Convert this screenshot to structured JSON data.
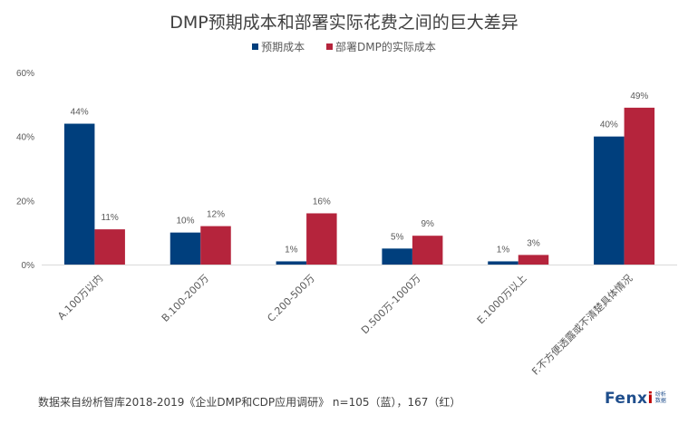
{
  "chart_data": {
    "type": "bar",
    "title": "DMP预期成本和部署实际花费之间的巨大差异",
    "categories": [
      "A.100万以内",
      "B.100-200万",
      "C.200-500万",
      "D.500万-1000万",
      "E.1000万以上",
      "F.不方便透露或不清楚具体情况"
    ],
    "series": [
      {
        "name": "预期成本",
        "color": "#003f7d",
        "values": [
          44,
          10,
          1,
          5,
          1,
          40
        ],
        "labels": [
          "44%",
          "10%",
          "1%",
          "5%",
          "1%",
          "40%"
        ]
      },
      {
        "name": "部署DMP的实际成本",
        "color": "#b5243c",
        "values": [
          11,
          12,
          16,
          9,
          3,
          49
        ],
        "labels": [
          "11%",
          "12%",
          "16%",
          "9%",
          "3%",
          "49%"
        ]
      }
    ],
    "xlabel": "",
    "ylabel": "",
    "ylim": [
      0,
      60
    ],
    "yticks": [
      0,
      20,
      40,
      60
    ],
    "ytick_labels": [
      "0%",
      "20%",
      "40%",
      "60%"
    ],
    "grid": false,
    "legend": "top-center"
  },
  "footer": {
    "source": "数据来自纷析智库2018-2019《企业DMP和CDP应用调研》  n=105（蓝），167（红）"
  },
  "logo": {
    "main": "Fenx",
    "accent": "i",
    "sub_line1": "纷析",
    "sub_line2": "数据"
  },
  "colors": {
    "axis": "#d9d9d9",
    "text": "#595959"
  }
}
